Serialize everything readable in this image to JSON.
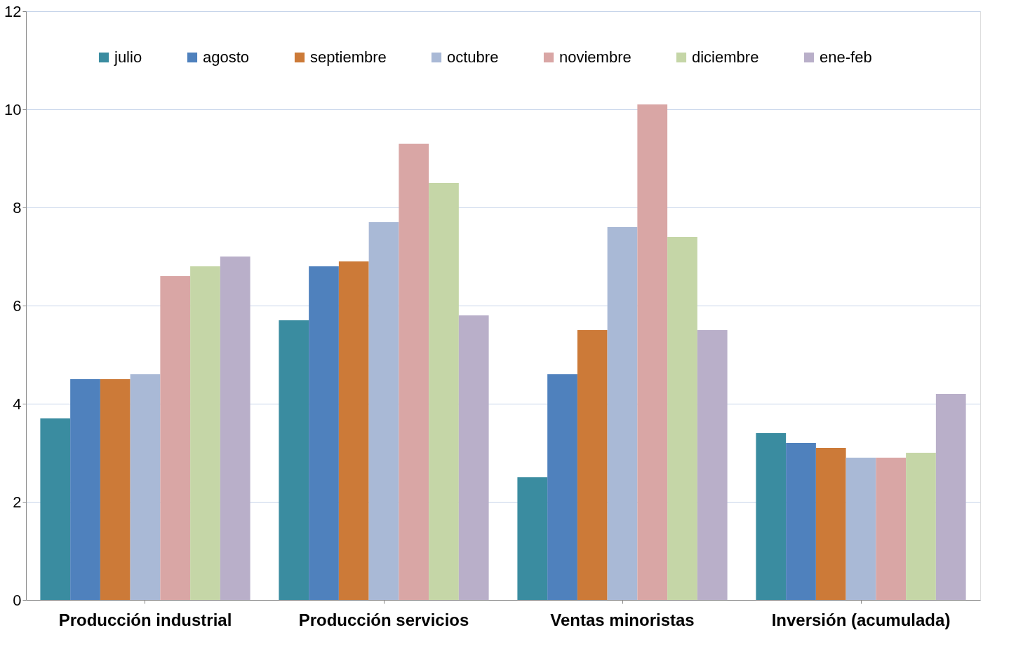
{
  "chart_data": {
    "type": "bar",
    "categories": [
      "Producción industrial",
      "Producción servicios",
      "Ventas minoristas",
      "Inversión (acumulada)"
    ],
    "series": [
      {
        "name": "julio",
        "color": "#3a8ca0",
        "values": [
          3.7,
          5.7,
          2.5,
          3.4
        ]
      },
      {
        "name": "agosto",
        "color": "#4f81bd",
        "values": [
          4.5,
          6.8,
          4.6,
          3.2
        ]
      },
      {
        "name": "septiembre",
        "color": "#cc7a38",
        "values": [
          4.5,
          6.9,
          5.5,
          3.1
        ]
      },
      {
        "name": "octubre",
        "color": "#a9b9d6",
        "values": [
          4.6,
          7.7,
          7.6,
          2.9
        ]
      },
      {
        "name": "noviembre",
        "color": "#d9a6a5",
        "values": [
          6.6,
          9.3,
          10.1,
          2.9
        ]
      },
      {
        "name": "diciembre",
        "color": "#c5d6a7",
        "values": [
          6.8,
          8.5,
          7.4,
          3.0
        ]
      },
      {
        "name": "ene-feb",
        "color": "#b9afc9",
        "values": [
          7.0,
          5.8,
          5.5,
          4.2
        ]
      }
    ],
    "ylim": [
      0,
      12
    ],
    "yticks": [
      0,
      2,
      4,
      6,
      8,
      10,
      12
    ],
    "grid": "y",
    "legend": "top"
  }
}
